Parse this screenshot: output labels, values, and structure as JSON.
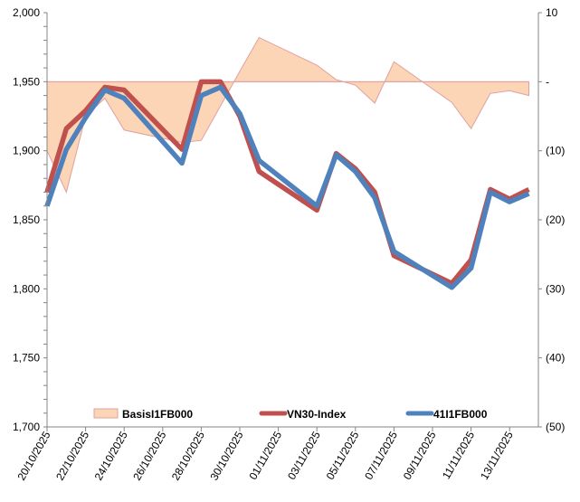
{
  "chart_data": {
    "type": "line",
    "title": "",
    "x": [
      "20/10/2025",
      "21/10/2025",
      "22/10/2025",
      "23/10/2025",
      "24/10/2025",
      "27/10/2025",
      "28/10/2025",
      "29/10/2025",
      "30/10/2025",
      "31/10/2025",
      "03/11/2025",
      "04/11/2025",
      "05/11/2025",
      "06/11/2025",
      "07/11/2025",
      "10/11/2025",
      "11/11/2025",
      "12/11/2025",
      "13/11/2025",
      "14/11/2025"
    ],
    "x_tick_labels": [
      "20/10/2025",
      "22/10/2025",
      "24/10/2025",
      "26/10/2025",
      "28/10/2025",
      "30/10/2025",
      "01/11/2025",
      "03/11/2025",
      "05/11/2025",
      "07/11/2025",
      "09/11/2025",
      "11/11/2025",
      "13/11/2025"
    ],
    "y_left": {
      "range": [
        1700,
        2000
      ],
      "tick_labels": [
        "1,700",
        "1,750",
        "1,800",
        "1,850",
        "1,900",
        "1,950",
        "2,000"
      ]
    },
    "y_right": {
      "range": [
        -50,
        10
      ],
      "tick_labels": [
        "(50)",
        "(40)",
        "(30)",
        "(20)",
        "(10)",
        "-",
        "10"
      ]
    },
    "legend_position": "bottom-inside",
    "series": [
      {
        "name": "BasisI1FB000",
        "type": "area",
        "axis": "right",
        "color": "#FBD5B5",
        "stroke": "#E0A0A0",
        "values": [
          -10,
          -16,
          -5,
          -2.4,
          -7,
          -8.8,
          -8.5,
          -3.5,
          1.5,
          6.4,
          2.4,
          0.3,
          -0.5,
          -3.1,
          2.9,
          -3,
          -6.8,
          -1.7,
          -1.3,
          -2
        ]
      },
      {
        "name": "VN30-Index",
        "type": "line",
        "axis": "left",
        "color": "#C0504D",
        "values": [
          1870,
          1916,
          1929,
          1946,
          1944,
          1901,
          1950,
          1950,
          1925,
          1885,
          1857,
          1898,
          1887,
          1870,
          1824,
          1804,
          1821,
          1872,
          1865,
          1872
        ]
      },
      {
        "name": "41I1FB000",
        "type": "line",
        "axis": "left",
        "color": "#4F81BD",
        "values": [
          1860,
          1901,
          1924,
          1944,
          1938,
          1891,
          1940,
          1946,
          1927,
          1893,
          1860,
          1897,
          1885,
          1866,
          1827,
          1801,
          1815,
          1870,
          1863,
          1869
        ]
      }
    ]
  }
}
